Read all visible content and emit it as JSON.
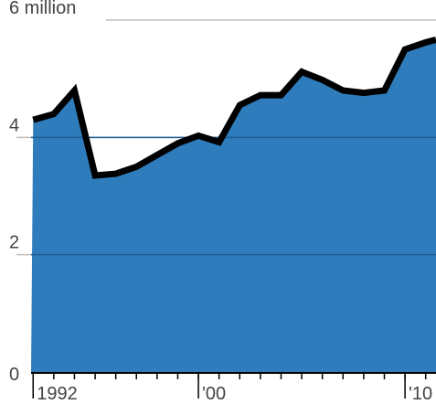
{
  "chart_data": {
    "type": "area",
    "x": [
      1992,
      1993,
      1994,
      1995,
      1996,
      1997,
      1998,
      1999,
      2000,
      2001,
      2002,
      2003,
      2004,
      2005,
      2006,
      2007,
      2008,
      2009,
      2010,
      2011
    ],
    "values": [
      4.3,
      4.4,
      4.8,
      3.35,
      3.38,
      3.5,
      3.7,
      3.9,
      4.03,
      3.92,
      4.55,
      4.72,
      4.72,
      5.12,
      4.98,
      4.8,
      4.76,
      4.8,
      5.5,
      5.62
    ],
    "ylim": [
      0,
      6
    ],
    "xlim": [
      1991.9,
      2011.5
    ],
    "y_ticks": [
      {
        "value": 0,
        "label": "0"
      },
      {
        "value": 2,
        "label": "2"
      },
      {
        "value": 4,
        "label": "4"
      },
      {
        "value": 6,
        "label": "6 million"
      }
    ],
    "x_ticks_labeled": [
      {
        "value": 1992,
        "label": "1992"
      },
      {
        "value": 2000,
        "label": "'00"
      },
      {
        "value": 2010,
        "label": "'10"
      }
    ],
    "x_minor_ticks": [
      1992,
      1993,
      1994,
      1995,
      1996,
      1997,
      1998,
      1999,
      2000,
      2001,
      2002,
      2003,
      2004,
      2005,
      2006,
      2007,
      2008,
      2009,
      2010,
      2011
    ],
    "grid": true,
    "colors": {
      "fill": "#2e7cbc",
      "line": "#000000",
      "grid": "#bdbdbd",
      "grid_inner": "#1d5d93"
    }
  }
}
